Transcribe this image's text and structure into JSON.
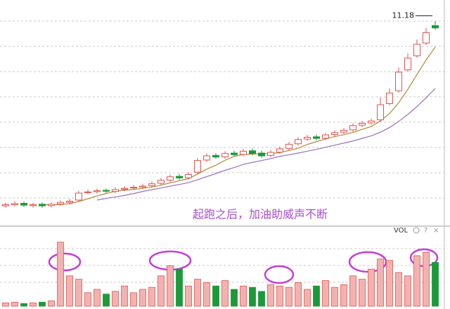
{
  "chart_data": [
    {
      "type": "candlestick",
      "annotation": "起跑之后，加油助威声不断",
      "ylim": [
        2.5,
        11.8
      ],
      "up_color": "#e0534f",
      "down_color": "#1a9a3a",
      "open": [
        3.25,
        3.3,
        3.36,
        3.26,
        3.32,
        3.26,
        3.33,
        3.4,
        3.5,
        3.82,
        3.86,
        3.92,
        3.87,
        3.96,
        4.02,
        4.06,
        4.12,
        4.22,
        4.36,
        4.52,
        4.46,
        4.7,
        5.22,
        5.42,
        5.36,
        5.52,
        5.46,
        5.62,
        5.52,
        5.42,
        5.56,
        5.72,
        5.92,
        6.12,
        6.22,
        6.16,
        6.32,
        6.42,
        6.52,
        6.72,
        6.82,
        6.95,
        7.65,
        8.2,
        9.1,
        9.7,
        10.25,
        11.0
      ],
      "close": [
        3.3,
        3.35,
        3.28,
        3.3,
        3.25,
        3.32,
        3.4,
        3.45,
        3.8,
        3.85,
        3.9,
        3.88,
        3.95,
        4.0,
        4.05,
        4.1,
        4.2,
        4.35,
        4.5,
        4.45,
        4.6,
        5.2,
        5.4,
        5.35,
        5.5,
        5.45,
        5.6,
        5.5,
        5.4,
        5.55,
        5.7,
        5.9,
        6.1,
        6.2,
        6.15,
        6.3,
        6.4,
        6.5,
        6.7,
        6.8,
        6.9,
        7.6,
        8.1,
        9.0,
        9.6,
        10.2,
        10.7,
        10.9
      ],
      "high": [
        3.4,
        3.45,
        3.44,
        3.38,
        3.4,
        3.4,
        3.48,
        3.55,
        3.9,
        3.95,
        4.0,
        4.0,
        4.05,
        4.1,
        4.15,
        4.2,
        4.3,
        4.45,
        4.6,
        4.62,
        4.7,
        5.3,
        5.5,
        5.52,
        5.6,
        5.62,
        5.7,
        5.72,
        5.62,
        5.65,
        5.8,
        6.0,
        6.2,
        6.3,
        6.32,
        6.4,
        6.5,
        6.6,
        6.8,
        6.9,
        7.0,
        7.9,
        8.3,
        9.2,
        9.8,
        10.4,
        10.9,
        11.18
      ],
      "low": [
        3.17,
        3.22,
        3.2,
        3.18,
        3.17,
        3.18,
        3.25,
        3.32,
        3.45,
        3.74,
        3.78,
        3.8,
        3.8,
        3.88,
        3.94,
        3.98,
        4.04,
        4.14,
        4.28,
        4.37,
        4.38,
        4.62,
        5.14,
        5.27,
        5.28,
        5.37,
        5.38,
        5.42,
        5.32,
        5.34,
        5.48,
        5.64,
        5.84,
        6.04,
        6.07,
        6.08,
        6.24,
        6.34,
        6.44,
        6.64,
        6.74,
        6.87,
        7.57,
        8.12,
        9.02,
        9.62,
        10.17,
        10.82
      ],
      "lines": [
        {
          "color": "#b08a3a",
          "values": [
            null,
            null,
            null,
            null,
            3.3,
            3.3,
            3.31,
            3.34,
            3.44,
            3.55,
            3.68,
            3.78,
            3.88,
            3.92,
            3.96,
            4.0,
            4.06,
            4.14,
            4.24,
            4.33,
            4.42,
            4.62,
            4.83,
            5.0,
            5.21,
            5.38,
            5.46,
            5.48,
            5.49,
            5.5,
            5.54,
            5.63,
            5.73,
            5.89,
            6.01,
            6.13,
            6.23,
            6.31,
            6.41,
            6.54,
            6.66,
            6.9,
            7.22,
            7.68,
            8.26,
            8.9,
            9.52,
            10.08
          ]
        },
        {
          "color": "#9b6fc0",
          "values": [
            null,
            null,
            null,
            null,
            null,
            null,
            null,
            null,
            null,
            null,
            3.5,
            3.57,
            3.63,
            3.7,
            3.78,
            3.87,
            3.95,
            4.02,
            4.1,
            4.17,
            4.25,
            4.37,
            4.51,
            4.64,
            4.78,
            4.9,
            5.03,
            5.12,
            5.2,
            5.28,
            5.38,
            5.45,
            5.52,
            5.6,
            5.68,
            5.77,
            5.86,
            5.95,
            6.04,
            6.15,
            6.26,
            6.42,
            6.62,
            6.88,
            7.18,
            7.52,
            7.9,
            8.3
          ]
        }
      ]
    },
    {
      "type": "bar",
      "label": "VOL",
      "ylim": [
        0,
        100
      ],
      "values": [
        5,
        6,
        4,
        5,
        6,
        8,
        95,
        45,
        40,
        20,
        25,
        18,
        22,
        30,
        20,
        25,
        28,
        45,
        60,
        55,
        30,
        40,
        35,
        30,
        38,
        25,
        30,
        28,
        22,
        32,
        30,
        28,
        35,
        25,
        30,
        38,
        28,
        32,
        45,
        40,
        55,
        70,
        68,
        50,
        45,
        75,
        80,
        65
      ]
    }
  ]
}
